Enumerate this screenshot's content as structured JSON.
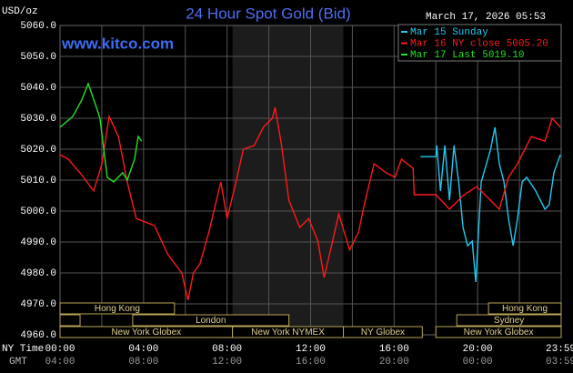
{
  "chart_data": {
    "type": "line",
    "title": "24 Hour Spot Gold (Bid)",
    "y_unit": "USD/oz",
    "timestamp": "March 17, 2026 05:53",
    "watermark": "www.kitco.com",
    "x_rows": [
      "NY Time",
      "GMT"
    ],
    "xlim": [
      0,
      24
    ],
    "ylim": [
      4960,
      5060
    ],
    "xticks": [
      {
        "value": 0,
        "label": "00:00"
      },
      {
        "value": 4,
        "label": "04:00"
      },
      {
        "value": 8,
        "label": "08:00"
      },
      {
        "value": 12,
        "label": "12:00"
      },
      {
        "value": 16,
        "label": "16:00"
      },
      {
        "value": 20,
        "label": "20:00"
      },
      {
        "value": 23.98,
        "label": "23:59"
      }
    ],
    "gmt_ticks": [
      {
        "value": 0,
        "label": "04:00"
      },
      {
        "value": 4,
        "label": "08:00"
      },
      {
        "value": 8,
        "label": "12:00"
      },
      {
        "value": 12,
        "label": "16:00"
      },
      {
        "value": 16,
        "label": "20:00"
      },
      {
        "value": 20,
        "label": "00:00"
      },
      {
        "value": 23.98,
        "label": "03:59"
      }
    ],
    "xgrid": [
      2,
      4,
      6,
      8,
      10,
      12,
      14,
      16,
      18,
      20,
      22
    ],
    "yticks": [
      {
        "value": 4960,
        "label": "4960.0"
      },
      {
        "value": 4970,
        "label": "4970.0"
      },
      {
        "value": 4980,
        "label": "4980.0"
      },
      {
        "value": 4990,
        "label": "4990.0"
      },
      {
        "value": 5000,
        "label": "5000.0"
      },
      {
        "value": 5010,
        "label": "5010.0"
      },
      {
        "value": 5020,
        "label": "5020.0"
      },
      {
        "value": 5030,
        "label": "5030.0"
      },
      {
        "value": 5040,
        "label": "5040.0"
      },
      {
        "value": 5050,
        "label": "5050.0"
      },
      {
        "value": 5060,
        "label": "5060.0"
      }
    ],
    "grid": true,
    "highlight_range": [
      8.26,
      13.57
    ],
    "sessions": [
      [
        {
          "name": "Hong Kong",
          "start": 0,
          "end": 5.48
        },
        {
          "name": "Hong Kong",
          "start": 20.52,
          "end": 24
        }
      ],
      [
        {
          "start": 0,
          "end": 0.96
        },
        {
          "name": "London",
          "start": 3.48,
          "end": 10.96
        },
        {
          "name": "Sydney",
          "start": 19.0,
          "end": 24
        }
      ],
      [
        {
          "name": "New York Globex",
          "start": 0,
          "end": 8.26
        },
        {
          "name": "New York NYMEX",
          "start": 8.26,
          "end": 13.57
        },
        {
          "name": "NY Globex",
          "start": 13.57,
          "end": 17.35
        },
        {
          "name": "New York Globex",
          "start": 18.0,
          "end": 24
        }
      ]
    ],
    "series": [
      {
        "name": "Mar 15 Sunday",
        "color": "#22c8f0",
        "x": [
          17.26,
          18.0,
          18.04,
          18.22,
          18.43,
          18.65,
          18.87,
          19.09,
          19.3,
          19.52,
          19.74,
          19.91,
          20.17,
          20.61,
          20.83,
          21.04,
          21.26,
          21.48,
          21.7,
          21.91,
          22.13,
          22.35,
          22.78,
          23.22,
          23.43,
          23.65,
          23.96
        ],
        "values": [
          5017.6,
          5017.6,
          5021.2,
          5006.5,
          5021.2,
          5003.5,
          5021.2,
          5009.4,
          4994.7,
          4988.8,
          4990.3,
          4977.1,
          5009.4,
          5019.7,
          5027.1,
          5015.3,
          5009.4,
          4997.6,
          4988.8,
          4997.6,
          5009.4,
          5010.9,
          5006.5,
          5000.6,
          5002.1,
          5012.4,
          5018.2
        ]
      },
      {
        "name": "Mar 16 NY close 5005.20",
        "color": "#ff1a1a",
        "x": [
          0,
          0.39,
          1.0,
          1.61,
          2.0,
          2.35,
          2.8,
          3.22,
          3.65,
          4.52,
          5.17,
          5.83,
          6.13,
          6.39,
          6.7,
          7.13,
          7.7,
          8.0,
          8.43,
          8.78,
          9.3,
          9.74,
          10.17,
          10.3,
          10.61,
          10.96,
          11.48,
          11.91,
          12.35,
          12.65,
          13.0,
          13.35,
          13.87,
          14.3,
          14.52,
          15.04,
          15.61,
          16.04,
          16.35,
          16.91,
          16.96,
          18.0,
          18.65,
          19.3,
          19.96,
          20.61,
          21.04,
          21.48,
          21.91,
          22.57,
          23.22,
          23.57,
          23.96
        ],
        "values": [
          5018.2,
          5016.8,
          5012,
          5006.5,
          5015,
          5030.6,
          5024,
          5009.4,
          4997.6,
          4995.3,
          4985.9,
          4980.0,
          4971.2,
          4980.0,
          4982.9,
          4993.2,
          5009.4,
          4997.6,
          5009.4,
          5020.0,
          5021.2,
          5027.1,
          5030.0,
          5033.5,
          5021.2,
          5003.5,
          4994.7,
          4997.6,
          4990.3,
          4978.5,
          4988.8,
          4999.1,
          4987.4,
          4993.2,
          5000.6,
          5015.3,
          5012.4,
          5010.9,
          5016.8,
          5013.8,
          5005.3,
          5005.3,
          5000.6,
          5005.0,
          5007.9,
          5003.5,
          5000.6,
          5010.9,
          5015.3,
          5024.1,
          5022.6,
          5030.0,
          5027.1
        ]
      },
      {
        "name": "Mar 17 Last 5019.10",
        "color": "#22e022",
        "x": [
          0,
          0.61,
          1.04,
          1.35,
          1.7,
          1.91,
          2.26,
          2.57,
          3.0,
          3.22,
          3.57,
          3.74,
          3.91
        ],
        "values": [
          5027.1,
          5030.6,
          5035.9,
          5041.2,
          5034.4,
          5030.0,
          5010.9,
          5009.4,
          5012.4,
          5010.0,
          5016.8,
          5024.1,
          5022.6
        ]
      }
    ]
  }
}
